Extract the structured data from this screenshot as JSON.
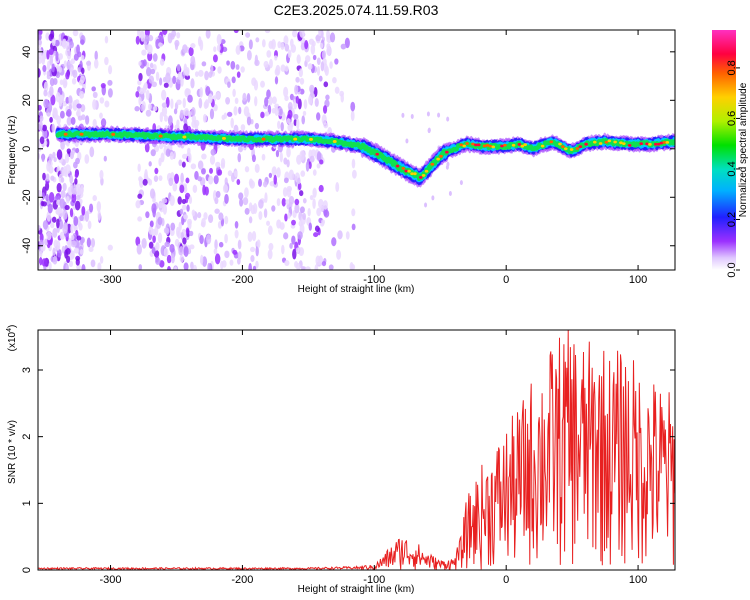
{
  "title": "C2E3.2025.074.11.59.R03",
  "chart_data": [
    {
      "type": "heatmap",
      "name": "spectrogram",
      "xlabel": "Height of straight line (km)",
      "ylabel": "Frequency (Hz)",
      "xlim": [
        -355,
        128
      ],
      "ylim": [
        -50,
        49
      ],
      "xticks": [
        -300,
        -200,
        -100,
        0,
        100
      ],
      "xtick_labels": [
        "-300",
        "-200",
        "-100",
        "0",
        "100"
      ],
      "yticks": [
        -40,
        -20,
        0,
        20,
        40
      ],
      "ytick_labels": [
        "-40",
        "-20",
        "0",
        "20",
        "40"
      ],
      "colorbar": {
        "label": "Normalized spectral amplitude",
        "range": [
          0,
          0.95
        ],
        "ticks": [
          0.0,
          0.2,
          0.4,
          0.6,
          0.8
        ],
        "tick_labels": [
          "0.0",
          "0.2",
          "0.4",
          "0.6",
          "0.8"
        ]
      },
      "ridge": {
        "x": [
          -340,
          -300,
          -250,
          -200,
          -150,
          -130,
          -110,
          -95,
          -80,
          -65,
          -55,
          -48,
          -40,
          -30,
          -20,
          -10,
          0,
          10,
          20,
          35,
          50,
          60,
          75,
          90,
          110,
          128
        ],
        "y": [
          6,
          6,
          5,
          4,
          4,
          3,
          1,
          -3,
          -8,
          -12,
          -6,
          -2,
          0,
          2,
          1,
          1,
          1,
          2,
          0,
          3,
          -1,
          2,
          3,
          2,
          2,
          3
        ]
      }
    },
    {
      "type": "line",
      "name": "snr",
      "xlabel": "Height of straight line (km)",
      "ylabel": "SNR (10 * v/v)",
      "scale_label": "(x10",
      "scale_exp": "4",
      "xlim": [
        -355,
        128
      ],
      "ylim": [
        0,
        3.6
      ],
      "xticks": [
        -300,
        -200,
        -100,
        0,
        100
      ],
      "xtick_labels": [
        "-300",
        "-200",
        "-100",
        "0",
        "100"
      ],
      "yticks": [
        0,
        1,
        2,
        3
      ],
      "ytick_labels": [
        "0",
        "1",
        "2",
        "3"
      ],
      "envelope": {
        "x": [
          -355,
          -150,
          -100,
          -90,
          -80,
          -70,
          -60,
          -50,
          -40,
          -35,
          -30,
          -20,
          -10,
          0,
          10,
          20,
          30,
          40,
          50,
          60,
          70,
          80,
          90,
          100,
          110,
          120,
          128
        ],
        "y": [
          0.03,
          0.03,
          0.05,
          0.2,
          0.35,
          0.3,
          0.18,
          0.1,
          0.12,
          0.3,
          0.7,
          1.0,
          1.2,
          1.4,
          1.6,
          1.9,
          2.1,
          2.3,
          2.4,
          2.2,
          2.3,
          2.1,
          2.2,
          2.0,
          1.9,
          1.8,
          1.7
        ]
      }
    }
  ]
}
